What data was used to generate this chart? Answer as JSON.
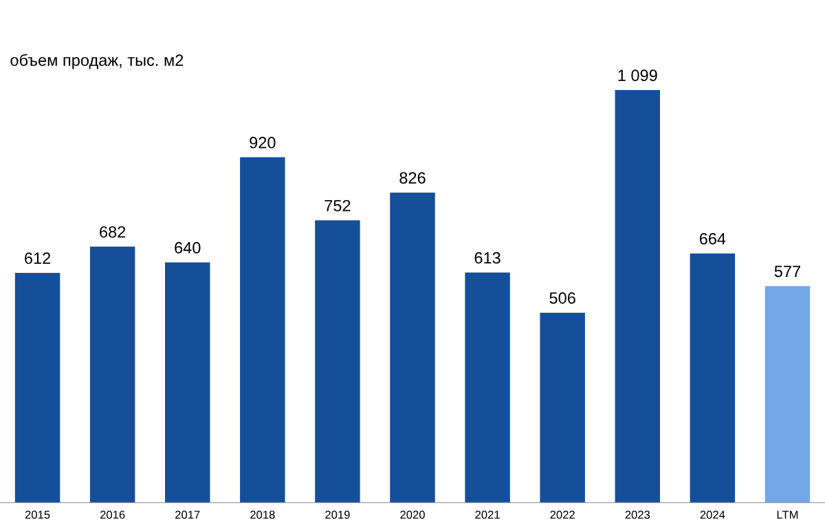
{
  "chart_data": {
    "type": "bar",
    "title": "объем продаж, тыс. м2",
    "categories": [
      "2015",
      "2016",
      "2017",
      "2018",
      "2019",
      "2020",
      "2021",
      "2022",
      "2023",
      "2024",
      "LTM"
    ],
    "values": [
      612,
      682,
      640,
      920,
      752,
      826,
      613,
      506,
      1099,
      664,
      577
    ],
    "colors": [
      "#154f9a",
      "#154f9a",
      "#154f9a",
      "#154f9a",
      "#154f9a",
      "#154f9a",
      "#154f9a",
      "#154f9a",
      "#154f9a",
      "#154f9a",
      "#74a7e6"
    ],
    "value_labels": [
      "612",
      "682",
      "640",
      "920",
      "752",
      "826",
      "613",
      "506",
      "1 099",
      "664",
      "577"
    ],
    "grid": false,
    "legend": false
  }
}
